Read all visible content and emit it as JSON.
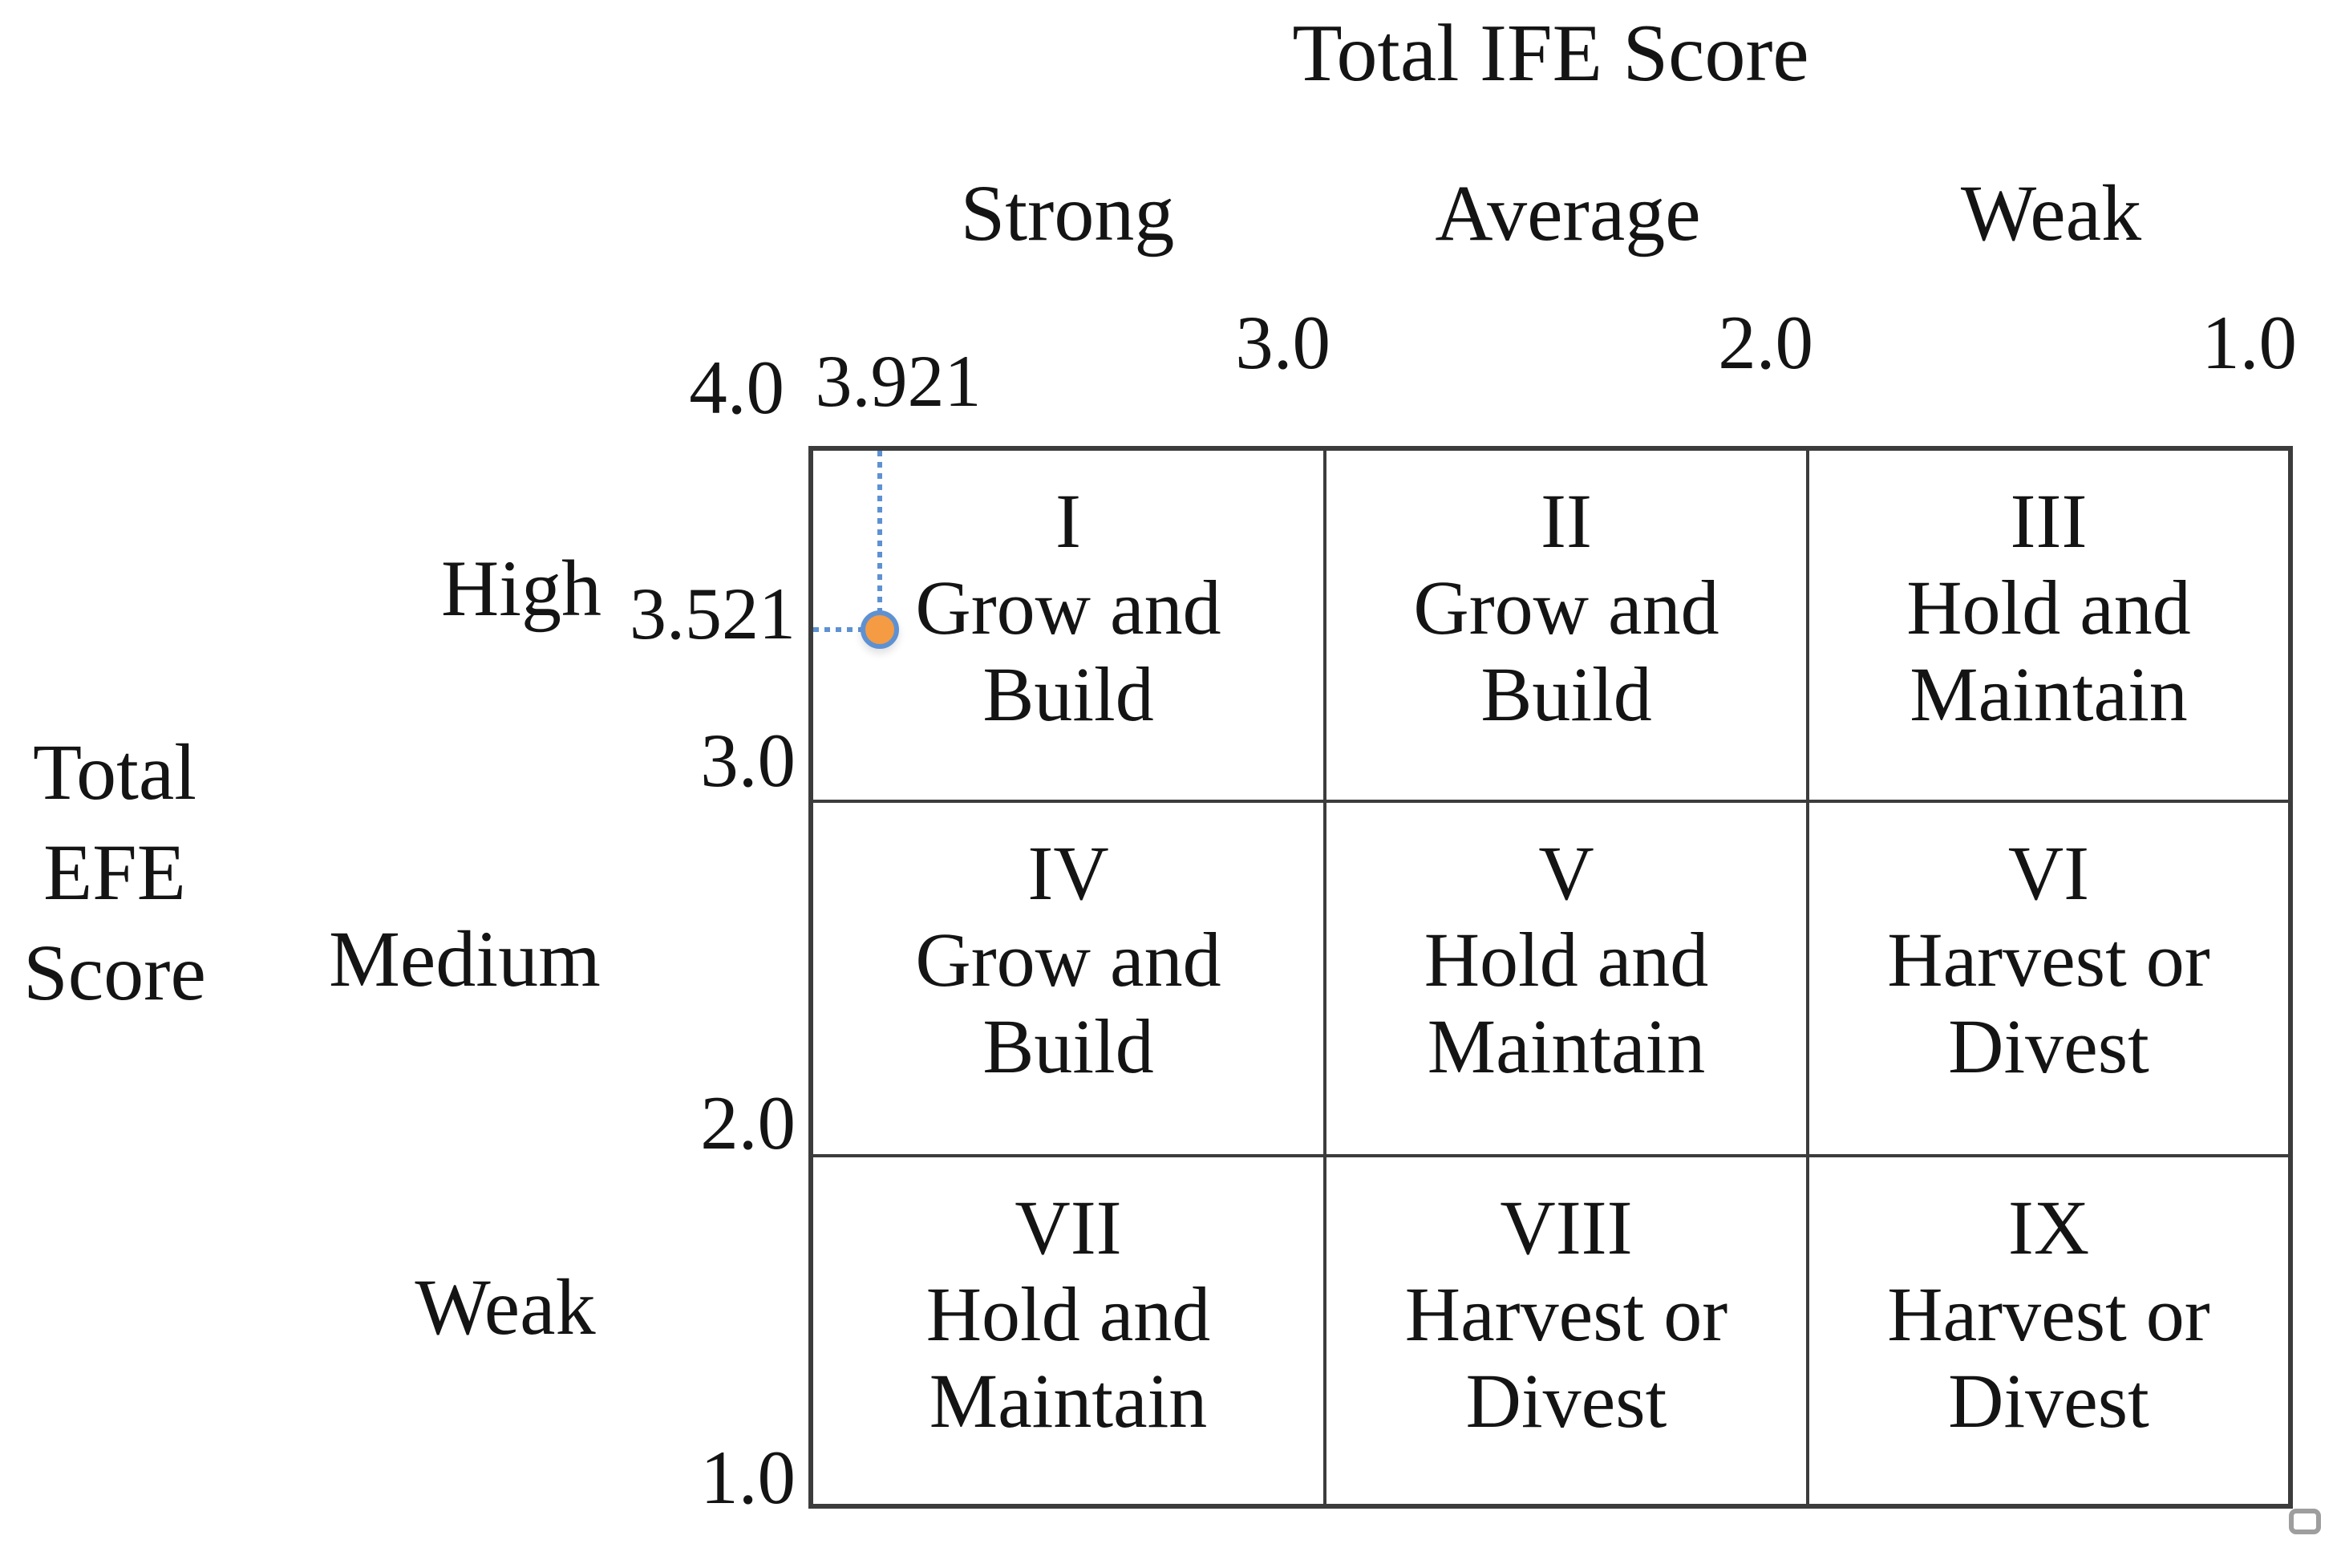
{
  "figure": {
    "x_axis_title": "Total IFE Score",
    "y_axis_title_lines": [
      "Total",
      "EFE",
      "Score"
    ],
    "column_headers": [
      "Strong",
      "Average",
      "Weak"
    ],
    "row_headers": [
      "High",
      "Medium",
      "Weak"
    ],
    "x_ticks": [
      "4.0",
      "3.0",
      "2.0",
      "1.0"
    ],
    "y_ticks": [
      "3.0",
      "2.0",
      "1.0"
    ],
    "point_x_label": "3.921",
    "point_y_label": "3.521"
  },
  "cells": [
    {
      "numeral": "I",
      "line1": "Grow and",
      "line2": "Build"
    },
    {
      "numeral": "II",
      "line1": "Grow and",
      "line2": "Build"
    },
    {
      "numeral": "III",
      "line1": "Hold and",
      "line2": "Maintain"
    },
    {
      "numeral": "IV",
      "line1": "Grow and",
      "line2": "Build"
    },
    {
      "numeral": "V",
      "line1": "Hold and",
      "line2": "Maintain"
    },
    {
      "numeral": "VI",
      "line1": "Harvest or",
      "line2": "Divest"
    },
    {
      "numeral": "VII",
      "line1": "Hold and",
      "line2": "Maintain"
    },
    {
      "numeral": "VIII",
      "line1": "Harvest or",
      "line2": "Divest"
    },
    {
      "numeral": "IX",
      "line1": "Harvest or",
      "line2": "Divest"
    }
  ],
  "colors": {
    "grid_line": "#3C3C3C",
    "text": "#141414",
    "guide_line": "#5E91D2",
    "point_fill": "#F59B43",
    "point_ring": "#5E91D2",
    "handle_border": "#9E9E9E"
  },
  "chart_data": {
    "type": "scatter",
    "title": "Total IFE Score",
    "xlabel": "Total IFE Score",
    "ylabel": "Total EFE Score",
    "xlim": [
      4.0,
      1.0
    ],
    "ylim": [
      4.0,
      1.0
    ],
    "x_ticks": [
      4.0,
      3.0,
      2.0,
      1.0
    ],
    "y_ticks": [
      4.0,
      3.0,
      2.0,
      1.0
    ],
    "x_categories": [
      "Strong",
      "Average",
      "Weak"
    ],
    "y_categories": [
      "High",
      "Medium",
      "Weak"
    ],
    "grid": true,
    "legend": false,
    "points": [
      {
        "x": 3.921,
        "y": 3.521
      }
    ],
    "cells": [
      {
        "quadrant": "I",
        "row": "High",
        "col": "Strong",
        "strategy": "Grow and Build"
      },
      {
        "quadrant": "II",
        "row": "High",
        "col": "Average",
        "strategy": "Grow and Build"
      },
      {
        "quadrant": "III",
        "row": "High",
        "col": "Weak",
        "strategy": "Hold and Maintain"
      },
      {
        "quadrant": "IV",
        "row": "Medium",
        "col": "Strong",
        "strategy": "Grow and Build"
      },
      {
        "quadrant": "V",
        "row": "Medium",
        "col": "Average",
        "strategy": "Hold and Maintain"
      },
      {
        "quadrant": "VI",
        "row": "Medium",
        "col": "Weak",
        "strategy": "Harvest or Divest"
      },
      {
        "quadrant": "VII",
        "row": "Weak",
        "col": "Strong",
        "strategy": "Hold and Maintain"
      },
      {
        "quadrant": "VIII",
        "row": "Weak",
        "col": "Average",
        "strategy": "Harvest or Divest"
      },
      {
        "quadrant": "IX",
        "row": "Weak",
        "col": "Weak",
        "strategy": "Harvest or Divest"
      }
    ]
  }
}
